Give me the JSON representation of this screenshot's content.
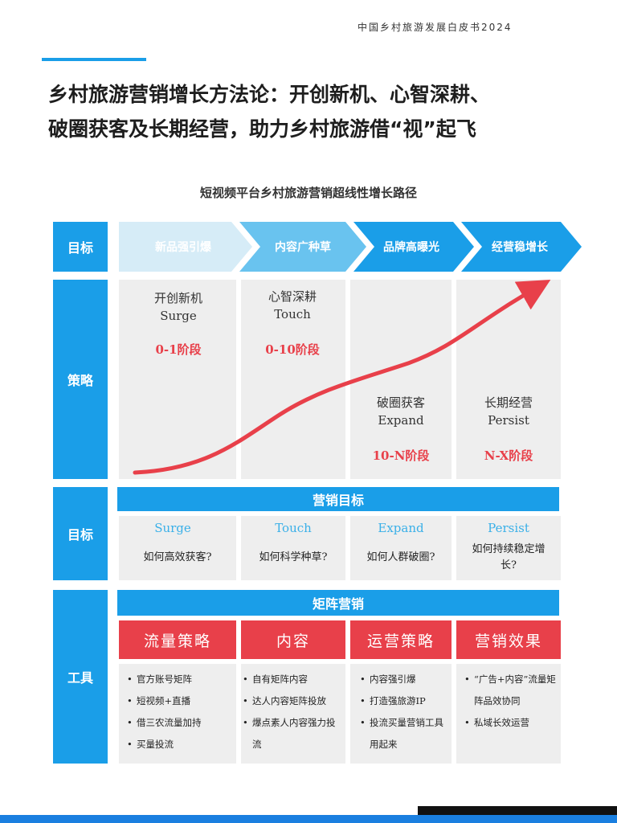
{
  "header": {
    "report_title": "中国乡村旅游发展白皮书2024"
  },
  "main_title": {
    "line1": "乡村旅游营销增长方法论：开创新机、心智深耕、",
    "line2": "破圈获客及长期经营，助力乡村旅游借“视”起飞"
  },
  "diagram": {
    "title": "短视频平台乡村旅游营销超线性增长路径",
    "row_labels": {
      "goal": "目标",
      "strategy": "策略",
      "goal2": "目标",
      "tools": "工具"
    },
    "chevrons": [
      "新品强引爆",
      "内容广种草",
      "品牌高曝光",
      "经营稳增长"
    ],
    "stages": [
      {
        "cn": "开创新机",
        "en": "Surge",
        "phase": "0-1阶段"
      },
      {
        "cn": "心智深耕",
        "en": "Touch",
        "phase": "0-10阶段"
      },
      {
        "cn": "破圈获客",
        "en": "Expand",
        "phase": "10-N阶段"
      },
      {
        "cn": "长期经营",
        "en": "Persist",
        "phase": "N-X阶段"
      }
    ],
    "marketing_goal_title": "营销目标",
    "goals": [
      {
        "en": "Surge",
        "question": "如何高效获客?"
      },
      {
        "en": "Touch",
        "question": "如何科学种草?"
      },
      {
        "en": "Expand",
        "question": "如何人群破圈?"
      },
      {
        "en": "Persist",
        "question": "如何持续稳定增长?"
      }
    ],
    "matrix_title": "矩阵营销",
    "tools": [
      {
        "head": "流量策略",
        "items": [
          "官方账号矩阵",
          "短视频+直播",
          "借三农流量加持",
          "买量投流"
        ]
      },
      {
        "head": "内容",
        "items": [
          "自有矩阵内容",
          "达人内容矩阵投放",
          "爆点素人内容强力投流"
        ]
      },
      {
        "head": "运营策略",
        "items": [
          "内容强引爆",
          "打造强旅游IP",
          "投流买量营销工具用起来"
        ]
      },
      {
        "head": "营销效果",
        "items": [
          "“广告+内容”流量矩阵品效协同",
          "私域长效运营"
        ]
      }
    ],
    "colors": {
      "accent_blue": "#1a9ee8",
      "light_chevron": "#d6ecf7",
      "red": "#e8404a",
      "panel_gray": "#eeeeee"
    }
  }
}
